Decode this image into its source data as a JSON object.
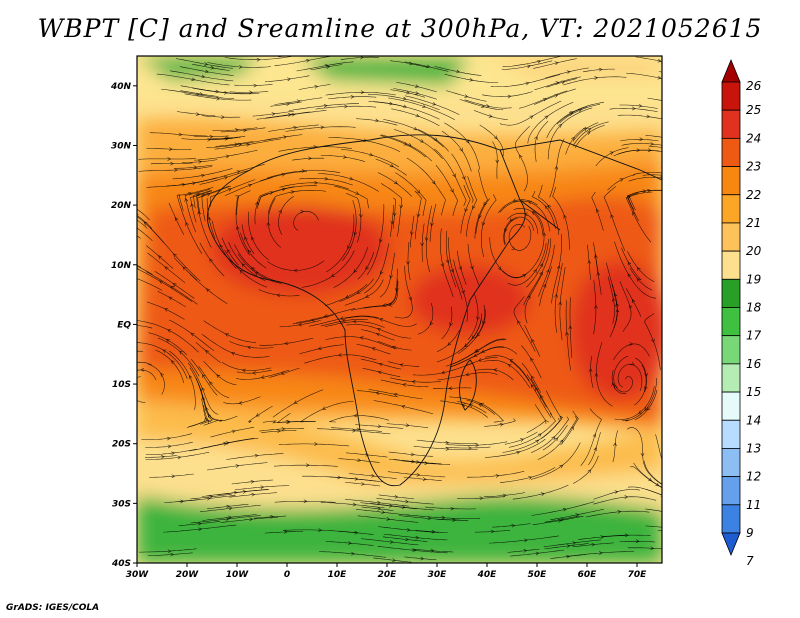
{
  "title": "WBPT [C] and Sreamline at 300hPa, VT: 2021052615",
  "credit": "GrADS: IGES/COLA",
  "map": {
    "variable": "Wet-bulb potential temperature",
    "level": "300hPa",
    "lon_range": [
      -30,
      75
    ],
    "lat_range": [
      -40,
      45
    ],
    "lat_ticks": [
      {
        "v": 40,
        "label": "40N"
      },
      {
        "v": 30,
        "label": "30N"
      },
      {
        "v": 20,
        "label": "20N"
      },
      {
        "v": 10,
        "label": "10N"
      },
      {
        "v": 0,
        "label": "EQ"
      },
      {
        "v": -10,
        "label": "10S"
      },
      {
        "v": -20,
        "label": "20S"
      },
      {
        "v": -30,
        "label": "30S"
      },
      {
        "v": -40,
        "label": "40S"
      }
    ],
    "lon_ticks": [
      {
        "v": -30,
        "label": "30W"
      },
      {
        "v": -20,
        "label": "20W"
      },
      {
        "v": -10,
        "label": "10W"
      },
      {
        "v": 0,
        "label": "0"
      },
      {
        "v": 10,
        "label": "10E"
      },
      {
        "v": 20,
        "label": "20E"
      },
      {
        "v": 30,
        "label": "30E"
      },
      {
        "v": 40,
        "label": "40E"
      },
      {
        "v": 50,
        "label": "50E"
      },
      {
        "v": 60,
        "label": "60E"
      },
      {
        "v": 70,
        "label": "70E"
      }
    ]
  },
  "colorbar": {
    "labels": [
      "26",
      "25",
      "24",
      "23",
      "22",
      "21",
      "20",
      "19",
      "18",
      "17",
      "16",
      "15",
      "14",
      "13",
      "12",
      "11",
      "9",
      "7"
    ],
    "colors": [
      "#a50000",
      "#c8140a",
      "#e0321e",
      "#ee5a14",
      "#f88712",
      "#fca628",
      "#fdc25a",
      "#fde08e",
      "#28a028",
      "#40c040",
      "#78d878",
      "#b4ecb4",
      "#e6fafa",
      "#b8dcff",
      "#8cbef4",
      "#64a0ec",
      "#3c82e2",
      "#1e5cd2"
    ]
  }
}
